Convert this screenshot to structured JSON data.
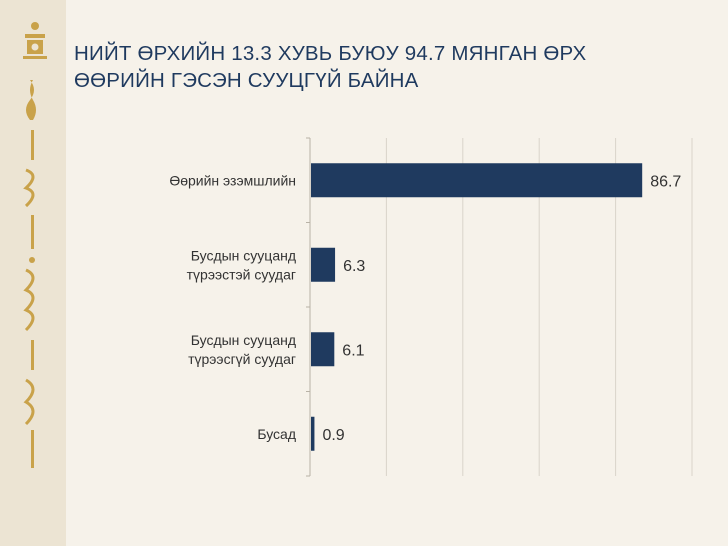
{
  "title_lines": [
    "НИЙТ ӨРХИЙН 13.3 ХУВЬ БУЮУ 94.7 МЯНГАН ӨРХ",
    "ӨӨРИЙН ГЭСЭН СУУЦГҮЙ БАЙНА"
  ],
  "colors": {
    "bar": "#1f3a5f",
    "title": "#1f3a5f",
    "text": "#333333",
    "grid": "#d9d4ca",
    "sidebar": "#ece4d3",
    "emblem": "#c9a24a"
  },
  "chart_data": {
    "type": "bar",
    "orientation": "horizontal",
    "categories": [
      [
        "Өөрийн эзэмшлийн"
      ],
      [
        "Бусдын сууцанд",
        "түрээстэй суудаг"
      ],
      [
        "Бусдын сууцанд",
        "түрээсгүй суудаг"
      ],
      [
        "Бусад"
      ]
    ],
    "values": [
      86.7,
      6.3,
      6.1,
      0.9
    ],
    "data_labels": [
      "86.7",
      "6.3",
      "6.1",
      "0.9"
    ],
    "xlim": [
      0,
      100
    ],
    "grid": true,
    "legend": "none"
  }
}
